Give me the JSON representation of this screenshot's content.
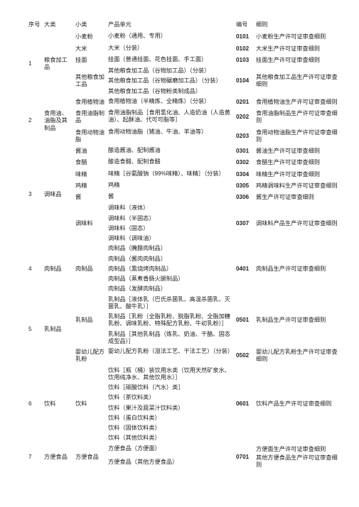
{
  "headers": {
    "seq": "序号",
    "major": "大类",
    "minor": "小类",
    "unit": "产品单元",
    "code": "编号",
    "rule": "细则"
  },
  "rows": [
    {
      "seq": "1",
      "seqspan": 5,
      "major": "粮食加工品",
      "majorspan": 5,
      "groups": [
        {
          "minor": "小麦粉",
          "minorspan": 1,
          "unit": [
            "小麦粉（通用、专用）"
          ],
          "code": "0101",
          "rule": "小麦粉生产许可证审查细则"
        },
        {
          "minor": "大米",
          "minorspan": 1,
          "unit": [
            "大米（分装）"
          ],
          "code": "0102",
          "rule": "大米生产许可证审查细则"
        },
        {
          "minor": "挂面",
          "minorspan": 1,
          "unit": [
            "挂面（普通挂面、花色挂面、手工面）"
          ],
          "code": "0103",
          "rule": "挂面生产许可证审查细则"
        },
        {
          "minor": "其他粮食加工品",
          "minorspan": 2,
          "unit": [
            "其他粮食加工品（谷物加工品）（分装）",
            "其他粮食加工品（谷物碾磨加工品）（分装）",
            "其他粮食加工品（谷物粉类制成品）"
          ],
          "code": "0104",
          "rule": "其他粮食加工品生产许可证审查细则"
        }
      ]
    },
    {
      "seq": "2",
      "seqspan": 3,
      "major": "食用油、油脂及其制品",
      "majorspan": 3,
      "groups": [
        {
          "minor": "食用植物油",
          "minorspan": 1,
          "unit": [
            "食用植物油（半精炼、全精炼）（分装）"
          ],
          "code": "0201",
          "rule": "食用植物油生产许可证审查细则"
        },
        {
          "minor": "食用油脂制品",
          "minorspan": 1,
          "unit": [
            "食用油脂制品［食用氢化油、人造奶油（人造黄油）、起酥油、代可可脂等］"
          ],
          "code": "0202",
          "rule": "食用油脂制品生产许可证审查细则"
        },
        {
          "minor": "食用动物油脂",
          "minorspan": 1,
          "unit": [
            "食用动物油脂（猪油、牛油、羊油等）"
          ],
          "code": "0203",
          "rule": "食用动物油脂生产许可证审查细则"
        }
      ]
    },
    {
      "seq": "3",
      "seqspan": 6,
      "major": "调味品",
      "majorspan": 6,
      "groups": [
        {
          "minor": "酱油",
          "minorspan": 1,
          "unit": [
            "酿造酱油、配制酱油"
          ],
          "code": "0301",
          "rule": "酱油生产许可证审查细则"
        },
        {
          "minor": "食醋",
          "minorspan": 1,
          "unit": [
            "酿造食醋、配制食醋"
          ],
          "code": "0302",
          "rule": "食醋生产许可证审查细则"
        },
        {
          "minor": "味精",
          "minorspan": 1,
          "unit": [
            "味精［谷氨酸钠（99%味精）、味精］（分装）"
          ],
          "code": "0304",
          "rule": "味精生产许可证审查细则"
        },
        {
          "minor": "鸡精",
          "minorspan": 1,
          "unit": [
            "鸡精"
          ],
          "code": "0305",
          "rule": "鸡精调味料生产许可证审查细则"
        },
        {
          "minor": "酱",
          "minorspan": 1,
          "unit": [
            "酱"
          ],
          "code": "0306",
          "rule": "酱生产许可证审查细则"
        },
        {
          "minor": "调味料",
          "minorspan": 1,
          "unit": [
            "调味料（液体）",
            "调味料（半固态）",
            "调味料（固态）",
            "调味料（调味油）"
          ],
          "code": "0307",
          "rule": "调味料产品生产许可证审查细则"
        }
      ]
    },
    {
      "seq": "4",
      "seqspan": 1,
      "major": "肉制品",
      "majorspan": 1,
      "groups": [
        {
          "minor": "肉制品",
          "minorspan": 1,
          "unit": [
            "肉制品（腌腊肉制品）",
            "肉制品（酱肉肉制品）",
            "肉制品（熏烧烤肉制品）",
            "肉制品（蒸煮香肠火腿制品）",
            "肉制品（发酵肉制品）"
          ],
          "code": "0401",
          "rule": "肉制品生产许可证审查细则"
        }
      ]
    },
    {
      "seq": "5",
      "seqspan": 2,
      "major": "乳制品",
      "majorspan": 2,
      "groups": [
        {
          "minor": "乳制品",
          "minorspan": 1,
          "unit": [
            "乳制品［液体乳（巴氏杀菌乳、高温杀菌乳、灭菌乳、酸牛乳）］",
            "乳制品［乳粉（全脂乳粉、脱脂乳粉、全脂加糖乳粉、调味乳粉、特殊配方乳粉、牛初乳粉）］",
            "乳制品［其他乳制品（炼乳、奶油、干酪、固态成型品）］"
          ],
          "code": "0501",
          "rule": "乳制品生产许可证审查细则"
        },
        {
          "minor": "婴幼儿配方乳粉",
          "minorspan": 1,
          "unit": [
            "婴幼儿配方乳粉（湿法工艺、干法工艺）（分装）"
          ],
          "code": "0502",
          "rule": "婴幼儿配方乳粉生产许可证审查细则"
        }
      ]
    },
    {
      "seq": "6",
      "seqspan": 1,
      "major": "饮料",
      "majorspan": 1,
      "groups": [
        {
          "minor": "饮料",
          "minorspan": 1,
          "unit": [
            "饮料［瓶（桶）装饮用水类（饮用天然矿泉水、饮用纯净水、其他饮用水）］",
            "饮料［碳酸饮料（汽水）类］",
            "饮料（茶饮料类）",
            "饮料（果汁及蔬菜汁饮料类）",
            "饮料（蛋白饮料类）",
            "饮料（固体饮料类）",
            "饮料（其他饮料类）"
          ],
          "code": "0601",
          "rule": "饮料产品生产许可证审查细则"
        }
      ]
    },
    {
      "seq": "7",
      "seqspan": 1,
      "major": "方便食品",
      "majorspan": 1,
      "groups": [
        {
          "minor": "方便食品",
          "minorspan": 1,
          "unit": [
            "方便食品（方便面）",
            "方便食品（其他方便食品）"
          ],
          "code": "0701",
          "rule": "方便面生产许可证审查细则\n其他方便食品生产许可证审查细则"
        }
      ]
    }
  ]
}
